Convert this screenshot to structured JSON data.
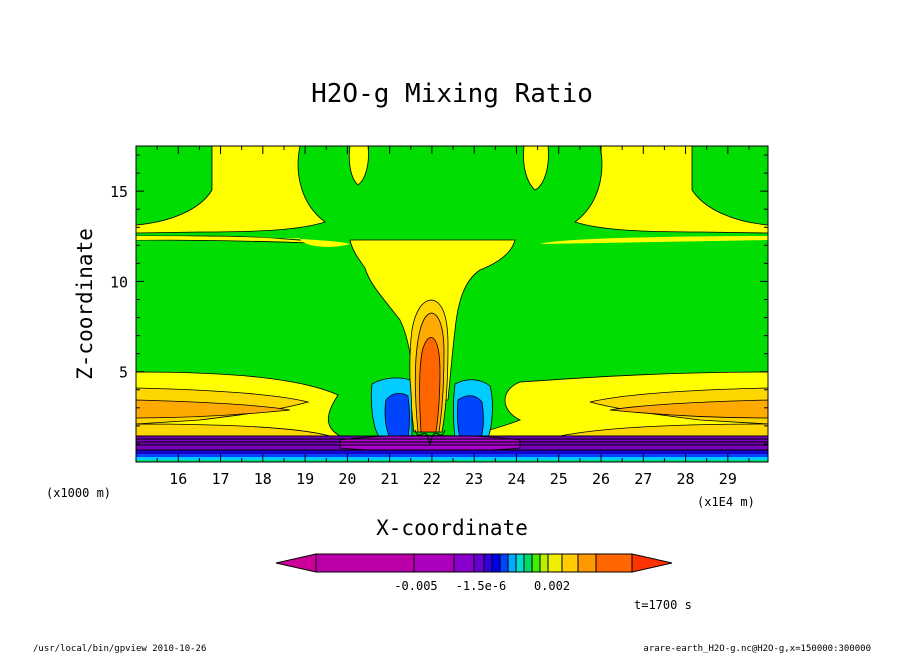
{
  "chart_data": {
    "type": "heatmap",
    "title": "H2O-g Mixing Ratio",
    "xlabel": "X-coordinate",
    "ylabel": "Z-coordinate",
    "x_ticks": [
      "16",
      "17",
      "18",
      "19",
      "20",
      "21",
      "22",
      "23",
      "24",
      "25",
      "26",
      "27",
      "28",
      "29"
    ],
    "x_tick_values": [
      16,
      17,
      18,
      19,
      20,
      21,
      22,
      23,
      24,
      25,
      26,
      27,
      28,
      29
    ],
    "xlim": [
      15.0,
      29.95
    ],
    "x_unit": "(x1E4 m)",
    "y_ticks": [
      "5",
      "10",
      "15"
    ],
    "y_tick_values": [
      5,
      10,
      15
    ],
    "ylim": [
      0,
      17.5
    ],
    "y_unit": "(x1000 m)",
    "grid": false,
    "colorbar": {
      "labels": [
        "-0.005",
        "-1.5e-6",
        "0.002"
      ],
      "colors": [
        "#cc0099",
        "#bb00aa",
        "#aa00bb",
        "#8800cc",
        "#6600cc",
        "#3300dd",
        "#0000ee",
        "#0044ff",
        "#00aaff",
        "#00ddcc",
        "#00dd66",
        "#44ee00",
        "#bbee00",
        "#eeee00",
        "#ffcc00",
        "#ff9900",
        "#ff6600",
        "#ff3300"
      ]
    },
    "contour_fill_colors": {
      "background": "#00dd00",
      "yellow": "#ffff00",
      "light_orange": "#ffd700",
      "orange": "#ffaa00",
      "dark_orange": "#ff6600",
      "cyan": "#00ccff",
      "blue": "#0044ff",
      "dark_blue": "#1a00cc",
      "purple": "#7700bb",
      "magenta": "#aa00cc"
    }
  },
  "annotations": {
    "time": "t=1700 s",
    "footer_left": "/usr/local/bin/gpview  2010-10-26",
    "footer_right": "arare-earth_H2O-g.nc@H2O-g,x=150000:300000"
  }
}
